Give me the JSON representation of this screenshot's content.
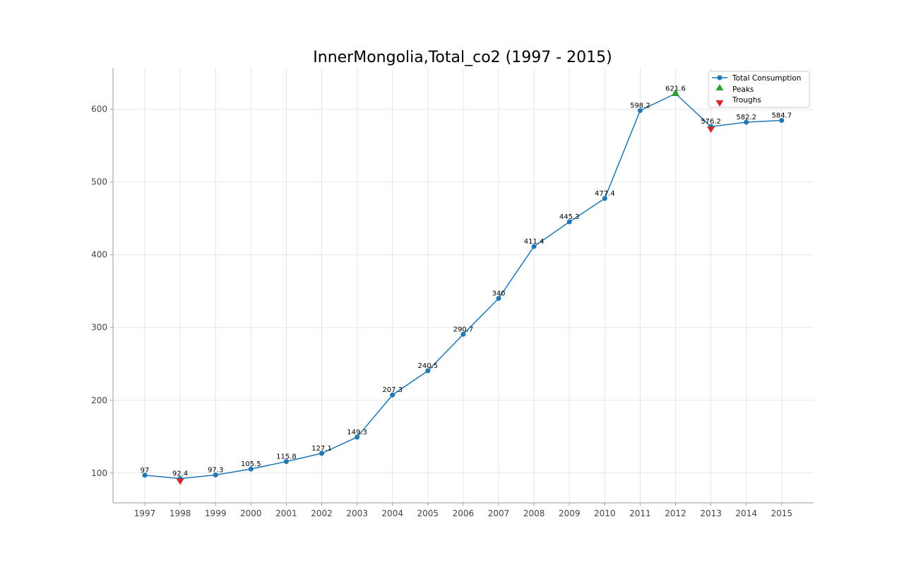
{
  "chart_data": {
    "type": "line",
    "title": "InnerMongolia,Total_co2 (1997 - 2015)",
    "xlabel": "",
    "ylabel": "",
    "x": [
      "1997",
      "1998",
      "1999",
      "2000",
      "2001",
      "2002",
      "2003",
      "2004",
      "2005",
      "2006",
      "2007",
      "2008",
      "2009",
      "2010",
      "2011",
      "2012",
      "2013",
      "2014",
      "2015"
    ],
    "series": [
      {
        "name": "Total Consumption",
        "values": [
          97,
          92.4,
          97.3,
          105.5,
          115.8,
          127.1,
          149.3,
          207.3,
          240.5,
          290.7,
          340,
          411.4,
          445.3,
          477.4,
          598.2,
          621.6,
          576.2,
          582.2,
          584.7
        ],
        "labels": [
          "97",
          "92.4",
          "97.3",
          "105.5",
          "115.8",
          "127.1",
          "149.3",
          "207.3",
          "240.5",
          "290.7",
          "340",
          "411.4",
          "445.3",
          "477.4",
          "598.2",
          "621.6",
          "576.2",
          "582.2",
          "584.7"
        ],
        "color": "#1f77b4"
      }
    ],
    "peaks": {
      "name": "Peaks",
      "x": [
        "2012"
      ],
      "values": [
        621.6
      ],
      "color": "#2ca02c"
    },
    "troughs": {
      "name": "Troughs",
      "x": [
        "1998",
        "2013"
      ],
      "values": [
        92.4,
        576.2
      ],
      "color": "#d62728"
    },
    "ylim": [
      59,
      657
    ],
    "yticks": [
      100,
      200,
      300,
      400,
      500,
      600
    ],
    "grid": true,
    "legend_position": "top-right"
  }
}
